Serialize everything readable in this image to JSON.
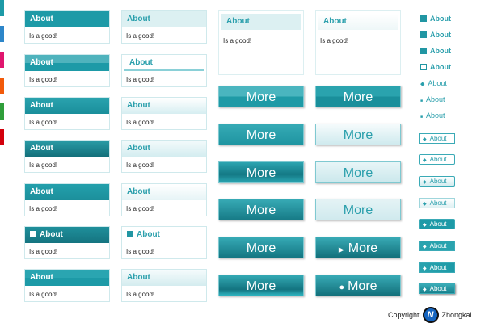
{
  "strips": [
    "#1d9aa7",
    "#2d86c9",
    "#e0156e",
    "#f25a0a",
    "#2f9e3a",
    "#d3000c"
  ],
  "panel_title": "About",
  "panel_body": "Is a good!",
  "more_label": "More",
  "link_label": "About",
  "copyright": "Copyright",
  "brand": "Zhongkai",
  "accent": "#1d9aa7"
}
